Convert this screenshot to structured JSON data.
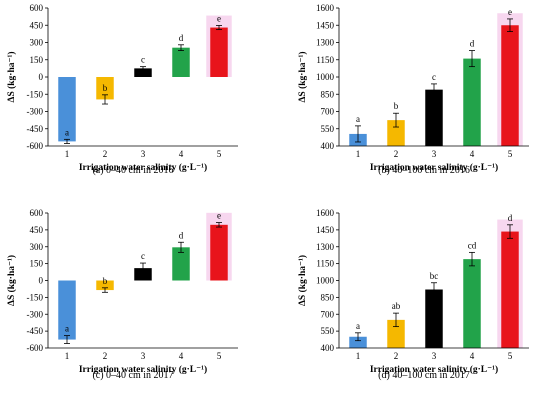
{
  "colors": [
    "#4a90d9",
    "#f5b800",
    "#000000",
    "#22a34a",
    "#e8141b"
  ],
  "chart_data": [
    {
      "type": "bar",
      "caption": "(a) 0–40 cm in 2016",
      "xlabel": "Irrigation water salinity (g·L⁻¹)",
      "ylabel": "ΔS (kg·ha⁻¹)",
      "categories": [
        "1",
        "2",
        "3",
        "4",
        "5"
      ],
      "values": [
        -560,
        -195,
        75,
        255,
        430
      ],
      "errors": [
        18,
        40,
        15,
        25,
        18
      ],
      "labels": [
        "a",
        "b",
        "c",
        "d",
        "e"
      ],
      "ylim": [
        -600,
        600
      ],
      "yticks": [
        "-600",
        "-450",
        "-300",
        "-150",
        "0",
        "150",
        "300",
        "450",
        "600"
      ]
    },
    {
      "type": "bar",
      "caption": "(b) 40–100 cm in 2016",
      "xlabel": "Irrigation water salinity (g·L⁻¹)",
      "ylabel": "ΔS (kg·ha⁻¹)",
      "categories": [
        "1",
        "2",
        "3",
        "4",
        "5"
      ],
      "values": [
        505,
        625,
        890,
        1160,
        1450
      ],
      "errors": [
        70,
        60,
        50,
        70,
        55
      ],
      "labels": [
        "a",
        "b",
        "c",
        "d",
        "e"
      ],
      "ylim": [
        400,
        1600
      ],
      "yticks": [
        "400",
        "550",
        "700",
        "850",
        "1000",
        "1150",
        "1300",
        "1450",
        "1600"
      ]
    },
    {
      "type": "bar",
      "caption": "(c) 0–40 cm in 2017",
      "xlabel": "Irrigation water salinity (g·L⁻¹)",
      "ylabel": "ΔS (kg·ha⁻¹)",
      "categories": [
        "1",
        "2",
        "3",
        "4",
        "5"
      ],
      "values": [
        -525,
        -85,
        110,
        295,
        495
      ],
      "errors": [
        35,
        20,
        45,
        45,
        20
      ],
      "labels": [
        "a",
        "b",
        "c",
        "d",
        "e"
      ],
      "ylim": [
        -600,
        600
      ],
      "yticks": [
        "-600",
        "-450",
        "-300",
        "-150",
        "0",
        "150",
        "300",
        "450",
        "600"
      ]
    },
    {
      "type": "bar",
      "caption": "(d) 40–100 cm in 2017",
      "xlabel": "Irrigation water salinity (g·L⁻¹)",
      "ylabel": "ΔS (kg·ha⁻¹)",
      "categories": [
        "1",
        "2",
        "3",
        "4",
        "5"
      ],
      "values": [
        500,
        650,
        920,
        1190,
        1435
      ],
      "errors": [
        35,
        60,
        60,
        60,
        60
      ],
      "labels": [
        "a",
        "ab",
        "bc",
        "cd",
        "d"
      ],
      "ylim": [
        400,
        1600
      ],
      "yticks": [
        "400",
        "550",
        "700",
        "850",
        "1000",
        "1150",
        "1300",
        "1450",
        "1600"
      ]
    }
  ]
}
